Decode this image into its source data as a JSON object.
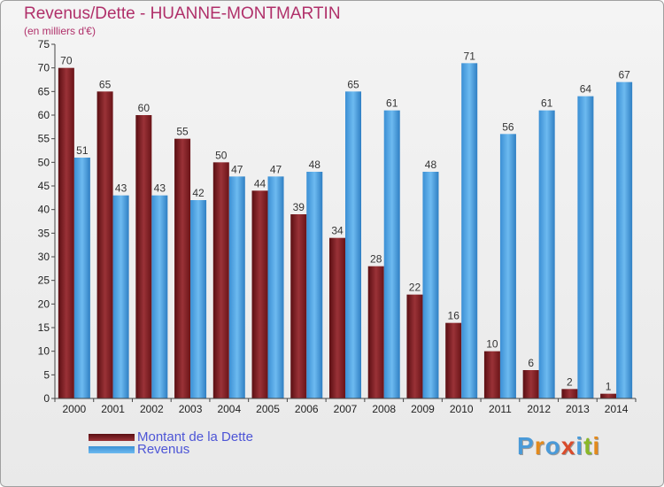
{
  "title": "Revenus/Dette - HUANNE-MONTMARTIN",
  "subtitle": "(en milliers d'€)",
  "logo": "Proxiti",
  "colors": {
    "dette": "#7a1a1e",
    "revenus": "#4aa2e4",
    "title": "#b0306a",
    "legend_text": "#4d55d6"
  },
  "chart_data": {
    "type": "bar",
    "categories": [
      "2000",
      "2001",
      "2002",
      "2003",
      "2004",
      "2005",
      "2006",
      "2007",
      "2008",
      "2009",
      "2010",
      "2011",
      "2012",
      "2013",
      "2014"
    ],
    "series": [
      {
        "name": "Montant de la Dette",
        "values": [
          70,
          65,
          60,
          55,
          50,
          44,
          39,
          34,
          28,
          22,
          16,
          10,
          6,
          2,
          1
        ]
      },
      {
        "name": "Revenus",
        "values": [
          51,
          43,
          43,
          42,
          47,
          47,
          48,
          65,
          61,
          48,
          71,
          56,
          61,
          64,
          67
        ]
      }
    ],
    "ylim": [
      0,
      75
    ],
    "yticks": [
      0,
      5,
      10,
      15,
      20,
      25,
      30,
      35,
      40,
      45,
      50,
      55,
      60,
      65,
      70,
      75
    ],
    "grid": false,
    "legend_position": "bottom-left"
  }
}
